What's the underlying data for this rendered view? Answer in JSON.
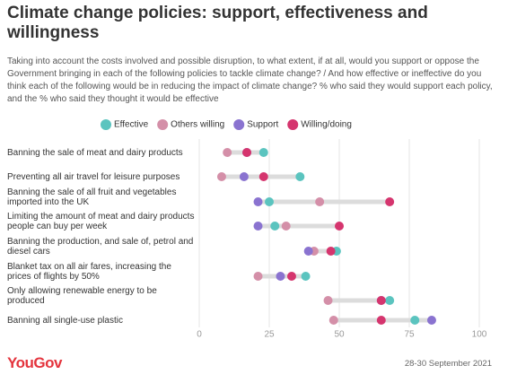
{
  "chart_data": {
    "type": "dot",
    "title": "Climate change policies: support, effectiveness and willingness",
    "subtitle": "Taking into account the costs involved and possible disruption, to what extent, if at all, would you support or oppose the Government bringing in each of the following policies to tackle climate change? / And how effective or ineffective do you think each of the following would be in reducing the impact of climate change? % who said they would support each policy, and the % who said they thought it would be effective",
    "categories": [
      "Banning the sale of meat and dairy products",
      "Preventing all air travel for leisure purposes",
      "Banning the sale of all fruit and vegetables imported into the UK",
      "Limiting the amount of meat and dairy products people can buy per week",
      "Banning the production, and sale of, petrol and diesel cars",
      "Blanket tax on all air fares, increasing the prices of flights by 50%",
      "Only allowing renewable energy to be produced",
      "Banning all single-use plastic"
    ],
    "series": [
      {
        "name": "Effective",
        "color": "#5bc4bf",
        "values": [
          23,
          36,
          25,
          27,
          49,
          38,
          68,
          77
        ]
      },
      {
        "name": "Others willing",
        "color": "#d48fa8",
        "values": [
          10,
          8,
          43,
          31,
          41,
          21,
          46,
          48
        ]
      },
      {
        "name": "Support",
        "color": "#8a73d0",
        "values": [
          17,
          16,
          21,
          21,
          39,
          29,
          65,
          83
        ]
      },
      {
        "name": "Willing/doing",
        "color": "#d5356e",
        "values": [
          17,
          23,
          68,
          50,
          47,
          33,
          65,
          65
        ]
      }
    ],
    "xlim": [
      0,
      100
    ],
    "xticks": [
      0,
      25,
      50,
      75,
      100
    ],
    "source": "28-30 September 2021",
    "logo": "YouGov"
  }
}
